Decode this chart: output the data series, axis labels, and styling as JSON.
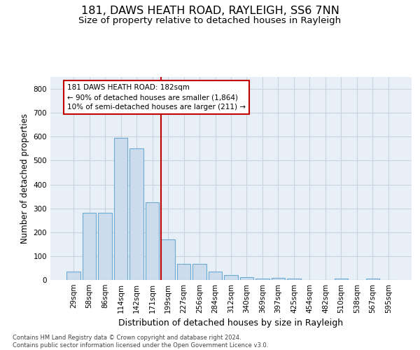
{
  "title": "181, DAWS HEATH ROAD, RAYLEIGH, SS6 7NN",
  "subtitle": "Size of property relative to detached houses in Rayleigh",
  "xlabel": "Distribution of detached houses by size in Rayleigh",
  "ylabel": "Number of detached properties",
  "bar_labels": [
    "29sqm",
    "58sqm",
    "86sqm",
    "114sqm",
    "142sqm",
    "171sqm",
    "199sqm",
    "227sqm",
    "256sqm",
    "284sqm",
    "312sqm",
    "340sqm",
    "369sqm",
    "397sqm",
    "425sqm",
    "454sqm",
    "482sqm",
    "510sqm",
    "538sqm",
    "567sqm",
    "595sqm"
  ],
  "bar_heights": [
    35,
    280,
    280,
    595,
    550,
    325,
    170,
    67,
    67,
    35,
    20,
    12,
    7,
    10,
    7,
    0,
    0,
    7,
    0,
    7,
    0
  ],
  "bar_color": "#ccdcec",
  "bar_edge_color": "#6aaad4",
  "vline_index": 6,
  "vline_color": "#c00000",
  "annotation_line1": "181 DAWS HEATH ROAD: 182sqm",
  "annotation_line2": "← 90% of detached houses are smaller (1,864)",
  "annotation_line3": "10% of semi-detached houses are larger (211) →",
  "annotation_box_edgecolor": "#c00000",
  "ylim": [
    0,
    850
  ],
  "yticks": [
    0,
    100,
    200,
    300,
    400,
    500,
    600,
    700,
    800
  ],
  "grid_color": "#c8d4e0",
  "background_color": "#e8eff6",
  "footer": "Contains HM Land Registry data © Crown copyright and database right 2024.\nContains public sector information licensed under the Open Government Licence v3.0.",
  "title_fontsize": 11.5,
  "subtitle_fontsize": 9.5,
  "xlabel_fontsize": 9,
  "ylabel_fontsize": 8.5,
  "tick_fontsize": 7.5,
  "annotation_fontsize": 7.5,
  "footer_fontsize": 6
}
